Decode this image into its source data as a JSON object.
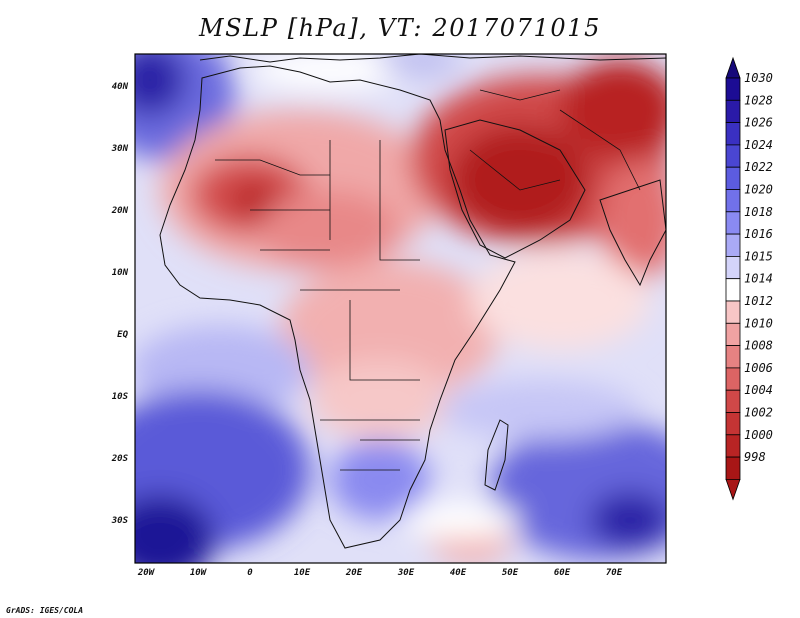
{
  "title": "MSLP [hPa], VT: 2017071015",
  "footer": "GrADS: IGES/COLA",
  "map": {
    "variable": "MSLP",
    "units": "hPa",
    "valid_time": "2017071015",
    "lon_labels": [
      "20W",
      "10W",
      "0",
      "10E",
      "20E",
      "30E",
      "40E",
      "50E",
      "60E",
      "70E"
    ],
    "lat_labels": [
      "40N",
      "30N",
      "20N",
      "10N",
      "EQ",
      "10S",
      "20S",
      "30S"
    ]
  },
  "colorbar": {
    "labels": [
      "1030",
      "1028",
      "1026",
      "1024",
      "1022",
      "1020",
      "1018",
      "1016",
      "1015",
      "1014",
      "1012",
      "1010",
      "1008",
      "1006",
      "1004",
      "1002",
      "1000",
      "998"
    ],
    "colors": [
      "#1c0c94",
      "#2a1aa8",
      "#3a30c2",
      "#4a46d2",
      "#5c5ce0",
      "#7171ea",
      "#8a8af2",
      "#aaaaf6",
      "#d4d4fa",
      "#ffffff",
      "#f8c6c6",
      "#f0a2a2",
      "#e68282",
      "#dc6464",
      "#d04848",
      "#c43434",
      "#b82424",
      "#a81616"
    ],
    "top_arrow_color": "#16097a",
    "bottom_arrow_color": "#a81616"
  }
}
